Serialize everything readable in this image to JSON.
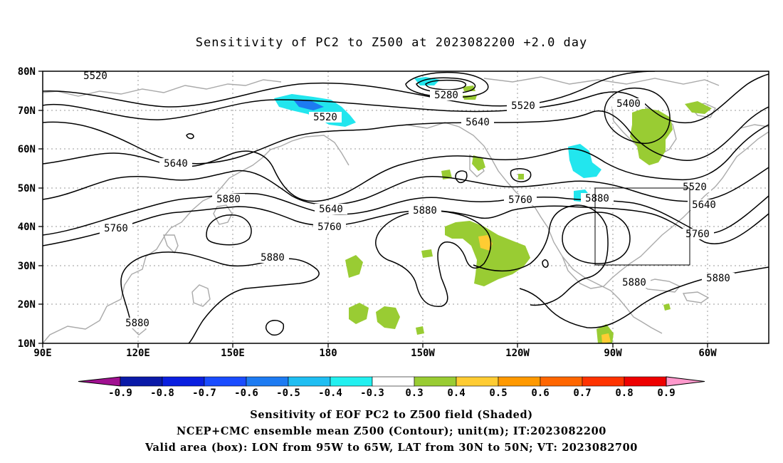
{
  "title": "Sensitivity of PC2 to Z500 at 2023082200 +2.0 day",
  "axes": {
    "lat_labels": [
      "80N",
      "70N",
      "60N",
      "50N",
      "40N",
      "30N",
      "20N",
      "10N"
    ],
    "lon_labels": [
      "90E",
      "120E",
      "150E",
      "180",
      "150W",
      "120W",
      "90W",
      "60W"
    ]
  },
  "contours": {
    "color": "#000000",
    "labels": [
      "5520",
      "5280",
      "5520",
      "5400",
      "5520",
      "5640",
      "5640",
      "5520",
      "5880",
      "5640",
      "5760",
      "5760",
      "5640",
      "5760",
      "5880",
      "5880",
      "5760",
      "5880",
      "5880",
      "5880",
      "5880"
    ]
  },
  "valid_box": {
    "lon_from": "95W",
    "lon_to": "65W",
    "lat_from": "30N",
    "lat_to": "50N"
  },
  "colorbar": {
    "labels": [
      "-0.9",
      "-0.8",
      "-0.7",
      "-0.6",
      "-0.5",
      "-0.4",
      "-0.3",
      "0.3",
      "0.4",
      "0.5",
      "0.6",
      "0.7",
      "0.8",
      "0.9"
    ],
    "colors": [
      "#a01090",
      "#0a1aa8",
      "#0a1fe0",
      "#1a4cff",
      "#1d7bf2",
      "#1fbef2",
      "#22f0f0",
      "#ffffff",
      "#99cc33",
      "#ffcc33",
      "#ff9900",
      "#ff6600",
      "#ff3300",
      "#ee0000",
      "#ff99cc"
    ]
  },
  "shading_colors": {
    "cyan": "#22e6ee",
    "blue": "#1d7bf2",
    "green": "#99cc33",
    "orange": "#ffcc33"
  },
  "captions": [
    "Sensitivity of EOF PC2 to Z500 field (Shaded)",
    "NCEP+CMC ensemble mean Z500 (Contour); unit(m); IT:2023082200",
    "Valid area (box): LON from 95W to 65W, LAT from 30N to 50N; VT: 2023082700"
  ]
}
